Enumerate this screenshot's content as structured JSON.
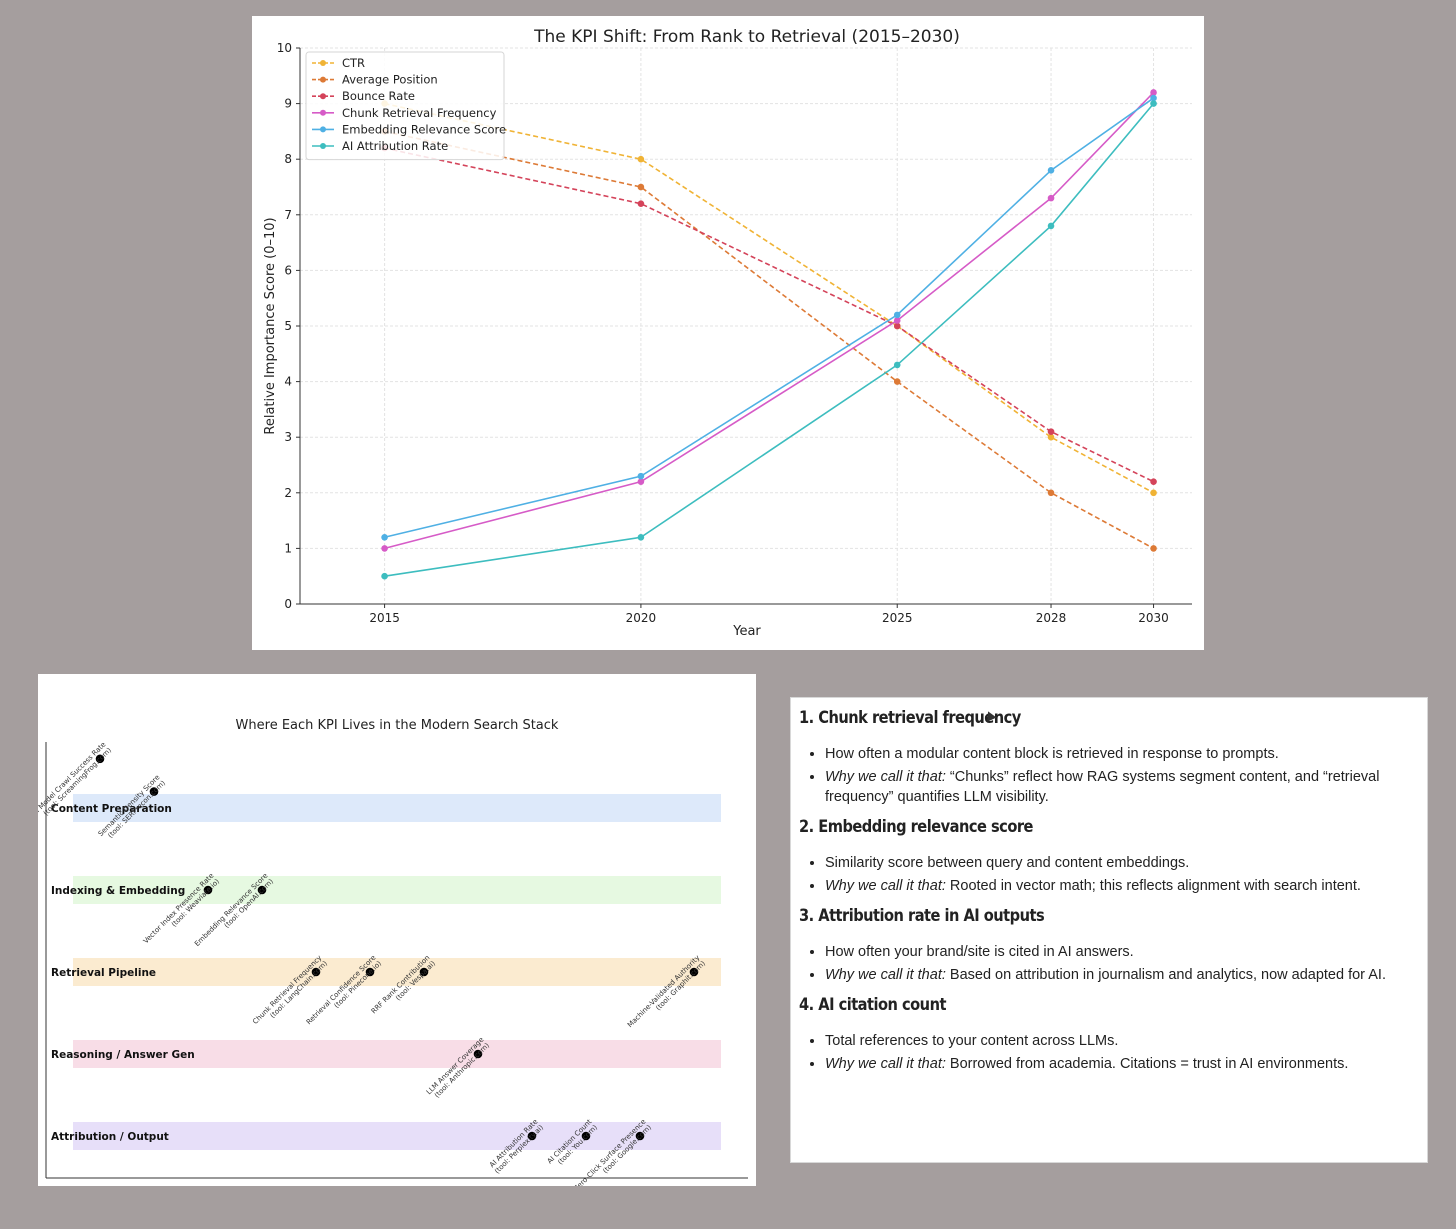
{
  "chart_data": [
    {
      "type": "line",
      "title": "The KPI Shift: From Rank to Retrieval (2015–2030)",
      "xlabel": "Year",
      "ylabel": "Relative Importance Score (0–10)",
      "x": [
        2015,
        2020,
        2025,
        2028,
        2030
      ],
      "xticks": [
        "2015",
        "2020",
        "2025",
        "2028",
        "2030"
      ],
      "yticks": [
        "0",
        "1",
        "2",
        "3",
        "4",
        "5",
        "6",
        "7",
        "8",
        "9",
        "10"
      ],
      "ylim": [
        0,
        10
      ],
      "grid": true,
      "legend": "top-left",
      "series": [
        {
          "name": "CTR",
          "color": "#f0b335",
          "dash": true,
          "values": [
            9.0,
            8.0,
            5.0,
            3.0,
            2.0
          ]
        },
        {
          "name": "Average Position",
          "color": "#dd7a36",
          "dash": true,
          "values": [
            8.5,
            7.5,
            4.0,
            2.0,
            1.0
          ]
        },
        {
          "name": "Bounce Rate",
          "color": "#d4435a",
          "dash": true,
          "values": [
            8.2,
            7.2,
            5.0,
            3.1,
            2.2
          ]
        },
        {
          "name": "Chunk Retrieval Frequency",
          "color": "#d65bc7",
          "dash": false,
          "values": [
            1.0,
            2.2,
            5.1,
            7.3,
            9.2
          ]
        },
        {
          "name": "Embedding Relevance Score",
          "color": "#4fb0e4",
          "dash": false,
          "values": [
            1.2,
            2.3,
            5.2,
            7.8,
            9.1
          ]
        },
        {
          "name": "AI Attribution Rate",
          "color": "#3dbdbf",
          "dash": false,
          "values": [
            0.5,
            1.2,
            4.3,
            6.8,
            9.0
          ]
        }
      ]
    },
    {
      "type": "scatter",
      "title": "Where Each KPI Lives in the Modern Search Stack",
      "layers": [
        {
          "name": "Content Preparation",
          "color": "#dde9fa"
        },
        {
          "name": "Indexing & Embedding",
          "color": "#e6f9e1"
        },
        {
          "name": "Retrieval Pipeline",
          "color": "#fbebd0"
        },
        {
          "name": "Reasoning / Answer Gen",
          "color": "#f8dde7"
        },
        {
          "name": "Attribution / Output",
          "color": "#e7dff9"
        }
      ],
      "points": [
        {
          "layer": 0,
          "slot": 1,
          "offset": 0.6,
          "label": [
            "AI Model Crawl Success Rate",
            "(tool: ScreamingFrog.com)"
          ]
        },
        {
          "layer": 0,
          "slot": 2,
          "offset": 0.2,
          "label": [
            "Semantic Density Score",
            "(tool: SERPrecon.com)"
          ]
        },
        {
          "layer": 1,
          "slot": 3,
          "offset": 0,
          "label": [
            "Vector Index Presence Rate",
            "(tool: Weaviate.io)"
          ]
        },
        {
          "layer": 1,
          "slot": 4,
          "offset": 0,
          "label": [
            "Embedding Relevance Score",
            "(tool: OpenAI.com)"
          ]
        },
        {
          "layer": 2,
          "slot": 5,
          "offset": 0,
          "label": [
            "Chunk Retrieval Frequency",
            "(tool: LangChain.com)"
          ]
        },
        {
          "layer": 2,
          "slot": 6,
          "offset": 0,
          "label": [
            "Retrieval Confidence Score",
            "(tool: Pinecone.io)"
          ]
        },
        {
          "layer": 2,
          "slot": 7,
          "offset": 0,
          "label": [
            "RRF Rank Contribution",
            "(tool: Vespa.ai)"
          ]
        },
        {
          "layer": 3,
          "slot": 8,
          "offset": 0,
          "label": [
            "LLM Answer Coverage",
            "(tool: Anthropic.com)"
          ]
        },
        {
          "layer": 4,
          "slot": 9,
          "offset": 0,
          "label": [
            "AI Attribution Rate",
            "(tool: Perplexity.ai)"
          ]
        },
        {
          "layer": 4,
          "slot": 10,
          "offset": 0,
          "label": [
            "AI Citation Count",
            "(tool: You.com)"
          ]
        },
        {
          "layer": 4,
          "slot": 11,
          "offset": 0,
          "label": [
            "Zero-Click Surface Presence",
            "(tool: Google.com)"
          ]
        },
        {
          "layer": 3,
          "slot": 12,
          "offset": 1.0,
          "label": [
            "Machine-Validated Authority",
            "(tool: Graphit.com)"
          ]
        }
      ]
    }
  ],
  "kpi_list": {
    "sections": [
      {
        "heading": "1. Chunk retrieval frequency",
        "items": [
          {
            "why": "",
            "text": "How often a modular content block is retrieved in response to prompts."
          },
          {
            "why": "Why we call it that:",
            "text": " “Chunks” reflect how RAG systems segment content, and “retrieval frequency” quantifies LLM visibility."
          }
        ]
      },
      {
        "heading": "2. Embedding relevance score",
        "items": [
          {
            "why": "",
            "text": "Similarity score between query and content embeddings."
          },
          {
            "why": "Why we call it that:",
            "text": " Rooted in vector math; this reflects alignment with search intent."
          }
        ]
      },
      {
        "heading": "3. Attribution rate in AI outputs",
        "items": [
          {
            "why": "",
            "text": "How often your brand/site is cited in AI answers."
          },
          {
            "why": "Why we call it that:",
            "text": " Based on attribution in journalism and analytics, now adapted for AI."
          }
        ]
      },
      {
        "heading": "4. AI citation count",
        "items": [
          {
            "why": "",
            "text": "Total references to your content across LLMs."
          },
          {
            "why": "Why we call it that:",
            "text": " Borrowed from academia. Citations = trust in AI environments."
          }
        ]
      }
    ]
  }
}
